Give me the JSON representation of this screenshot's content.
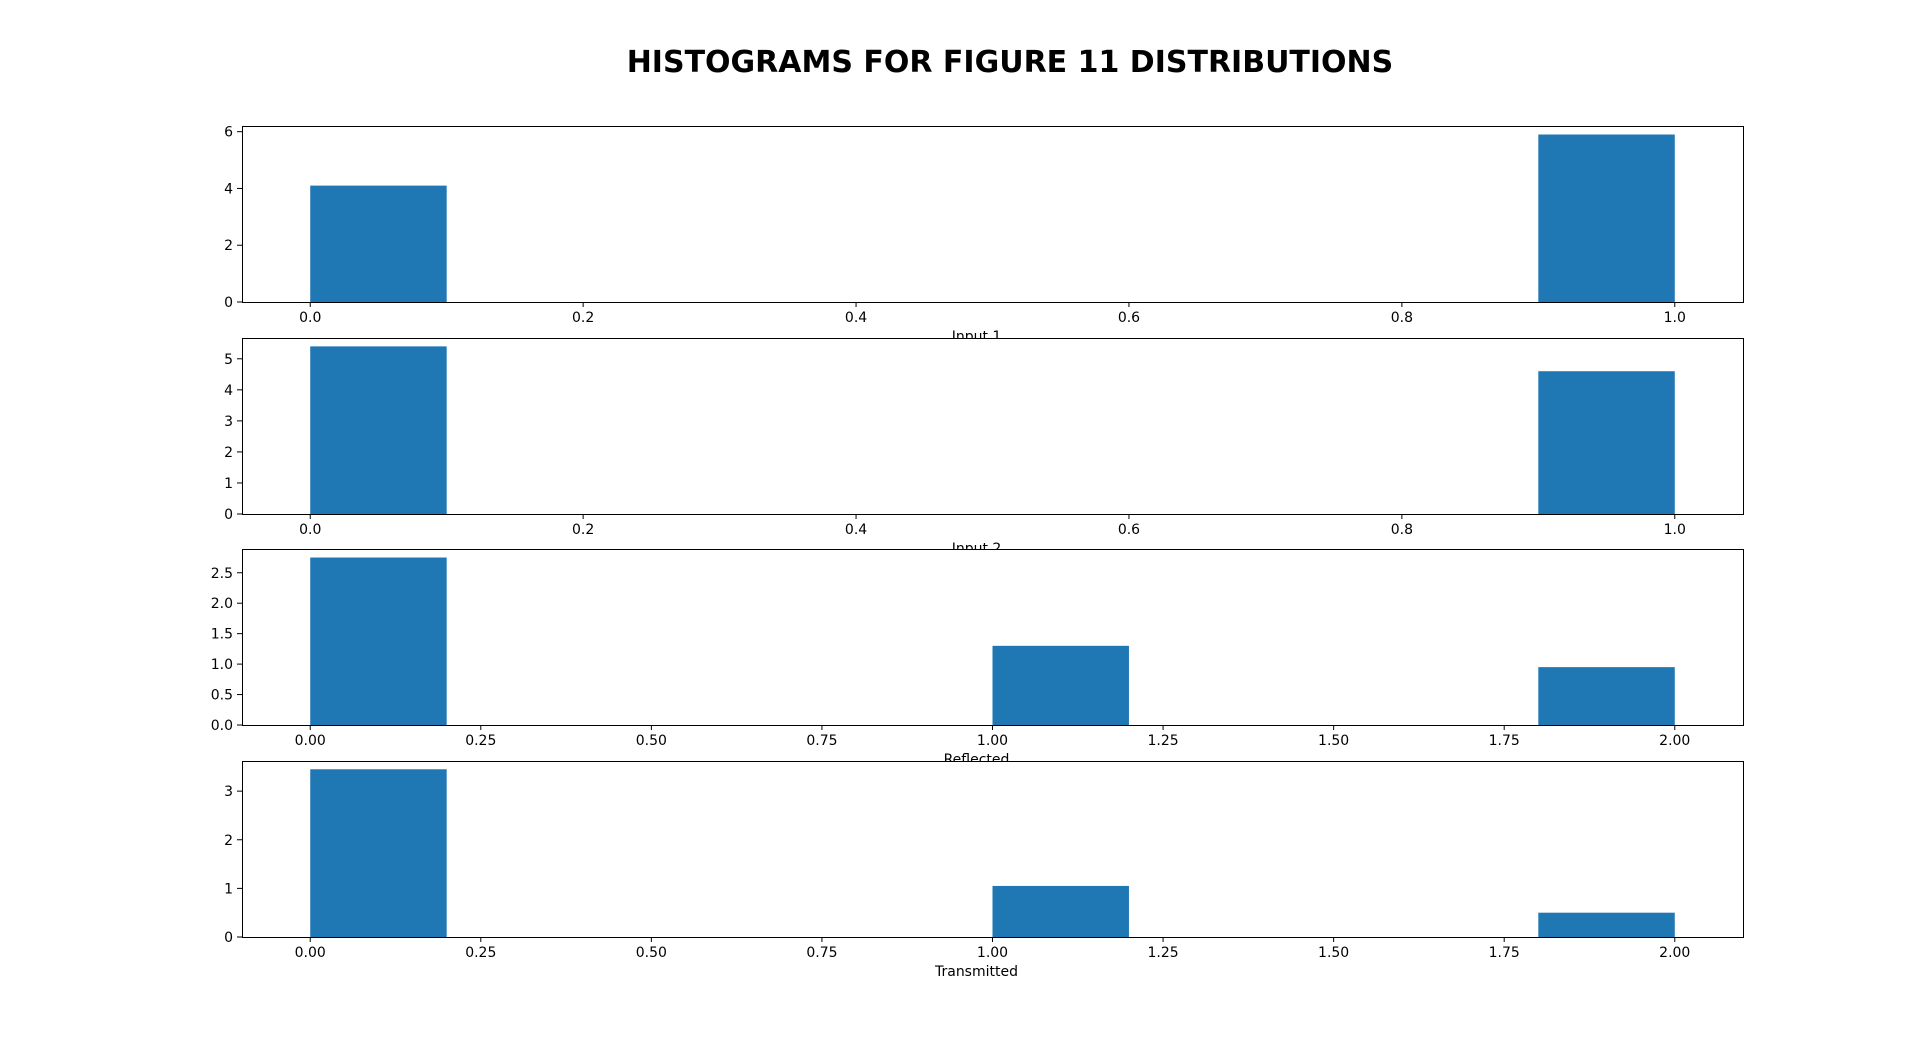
{
  "figure": {
    "title": "HISTOGRAMS FOR FIGURE 11 DISTRIBUTIONS",
    "bar_color": "#1f77b4"
  },
  "chart_data": [
    {
      "type": "bar",
      "xlabel": "Input 1",
      "ylabel": "",
      "xlim": [
        -0.05,
        1.05
      ],
      "ylim": [
        0,
        6.2
      ],
      "x_ticks": [
        "0.0",
        "0.2",
        "0.4",
        "0.6",
        "0.8",
        "1.0"
      ],
      "x_tick_values": [
        0.0,
        0.2,
        0.4,
        0.6,
        0.8,
        1.0
      ],
      "y_ticks": [
        "0",
        "2",
        "4",
        "6"
      ],
      "y_tick_values": [
        0,
        2,
        4,
        6
      ],
      "bins": [
        {
          "x0": 0.0,
          "x1": 0.1,
          "value": 4.1
        },
        {
          "x0": 0.9,
          "x1": 1.0,
          "value": 5.9
        }
      ]
    },
    {
      "type": "bar",
      "xlabel": "Input 2",
      "ylabel": "",
      "xlim": [
        -0.05,
        1.05
      ],
      "ylim": [
        0,
        5.67
      ],
      "x_ticks": [
        "0.0",
        "0.2",
        "0.4",
        "0.6",
        "0.8",
        "1.0"
      ],
      "x_tick_values": [
        0.0,
        0.2,
        0.4,
        0.6,
        0.8,
        1.0
      ],
      "y_ticks": [
        "0",
        "1",
        "2",
        "3",
        "4",
        "5"
      ],
      "y_tick_values": [
        0,
        1,
        2,
        3,
        4,
        5
      ],
      "bins": [
        {
          "x0": 0.0,
          "x1": 0.1,
          "value": 5.4
        },
        {
          "x0": 0.9,
          "x1": 1.0,
          "value": 4.6
        }
      ]
    },
    {
      "type": "bar",
      "xlabel": "Reflected",
      "ylabel": "",
      "xlim": [
        -0.1,
        2.1
      ],
      "ylim": [
        0,
        2.89
      ],
      "x_ticks": [
        "0.00",
        "0.25",
        "0.50",
        "0.75",
        "1.00",
        "1.25",
        "1.50",
        "1.75",
        "2.00"
      ],
      "x_tick_values": [
        0.0,
        0.25,
        0.5,
        0.75,
        1.0,
        1.25,
        1.5,
        1.75,
        2.0
      ],
      "y_ticks": [
        "0.0",
        "0.5",
        "1.0",
        "1.5",
        "2.0",
        "2.5"
      ],
      "y_tick_values": [
        0.0,
        0.5,
        1.0,
        1.5,
        2.0,
        2.5
      ],
      "bins": [
        {
          "x0": 0.0,
          "x1": 0.2,
          "value": 2.75
        },
        {
          "x0": 1.0,
          "x1": 1.2,
          "value": 1.3
        },
        {
          "x0": 1.8,
          "x1": 2.0,
          "value": 0.95
        }
      ]
    },
    {
      "type": "bar",
      "xlabel": "Transmitted",
      "ylabel": "",
      "xlim": [
        -0.1,
        2.1
      ],
      "ylim": [
        0,
        3.62
      ],
      "x_ticks": [
        "0.00",
        "0.25",
        "0.50",
        "0.75",
        "1.00",
        "1.25",
        "1.50",
        "1.75",
        "2.00"
      ],
      "x_tick_values": [
        0.0,
        0.25,
        0.5,
        0.75,
        1.0,
        1.25,
        1.5,
        1.75,
        2.0
      ],
      "y_ticks": [
        "0",
        "1",
        "2",
        "3"
      ],
      "y_tick_values": [
        0,
        1,
        2,
        3
      ],
      "bins": [
        {
          "x0": 0.0,
          "x1": 0.2,
          "value": 3.45
        },
        {
          "x0": 1.0,
          "x1": 1.2,
          "value": 1.05
        },
        {
          "x0": 1.8,
          "x1": 2.0,
          "value": 0.5
        }
      ]
    }
  ]
}
